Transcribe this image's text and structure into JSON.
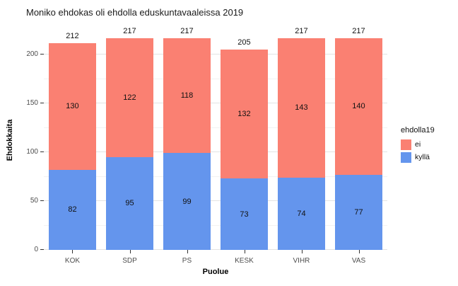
{
  "chart_data": {
    "type": "bar",
    "stacked": true,
    "title": "Moniko ehdokas oli ehdolla eduskuntavaaleissa 2019",
    "xlabel": "Puolue",
    "ylabel": "Ehdokkaita",
    "categories": [
      "KOK",
      "SDP",
      "PS",
      "KESK",
      "VIHR",
      "VAS"
    ],
    "series": [
      {
        "name": "kyllä",
        "color": "#6495ED",
        "values": [
          82,
          95,
          99,
          73,
          74,
          77
        ]
      },
      {
        "name": "ei",
        "color": "#FA8072",
        "values": [
          130,
          122,
          118,
          132,
          143,
          140
        ]
      }
    ],
    "totals": [
      212,
      217,
      217,
      205,
      217,
      217
    ],
    "yticks": [
      0,
      50,
      100,
      150,
      200
    ],
    "ylim": [
      0,
      224
    ],
    "grid": true,
    "legend": {
      "title": "ehdolla19",
      "position": "right",
      "items": [
        {
          "label": "ei",
          "color": "#FA8072"
        },
        {
          "label": "kyllä",
          "color": "#6495ED"
        }
      ]
    }
  }
}
